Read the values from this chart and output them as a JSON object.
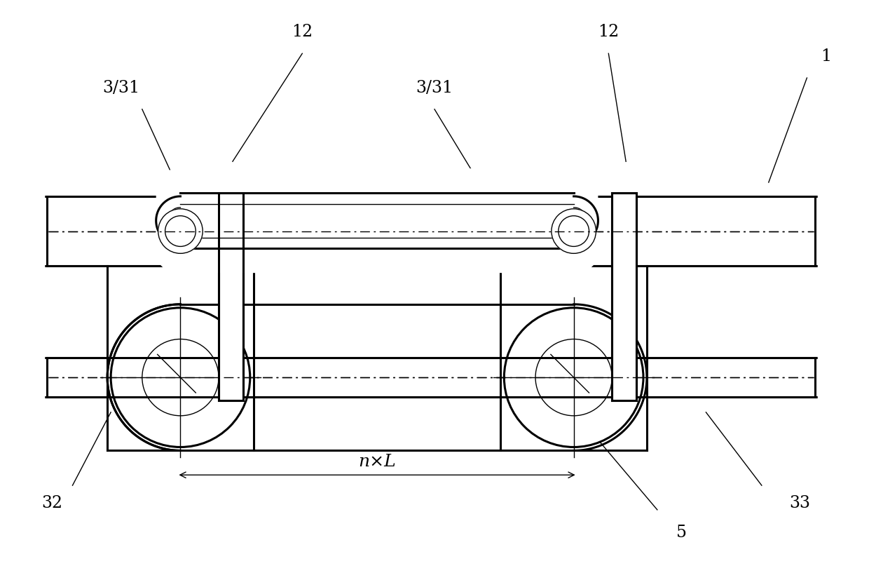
{
  "bg_color": "#ffffff",
  "line_color": "#000000",
  "fig_width": 12.4,
  "fig_height": 8.28,
  "lw_thick": 2.2,
  "lw_med": 1.5,
  "lw_thin": 1.0
}
